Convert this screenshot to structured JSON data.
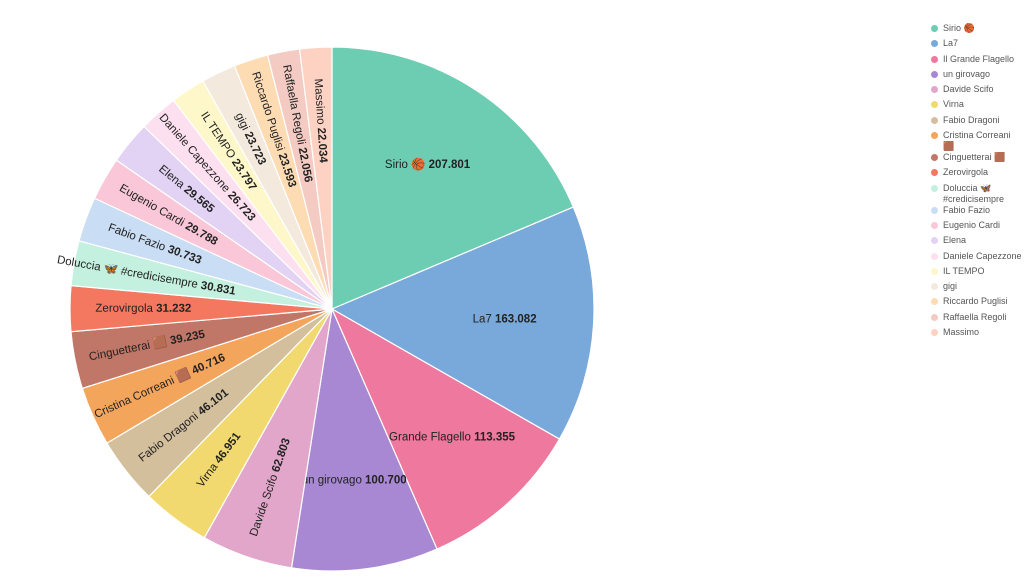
{
  "chart_data": {
    "type": "pie",
    "slices": [
      {
        "name": "Sirio 🏀",
        "value": 207.801,
        "value_label": "207.801",
        "color": "#6ccdb2"
      },
      {
        "name": "La7",
        "value": 163.082,
        "value_label": "163.082",
        "color": "#79a8da"
      },
      {
        "name": "Il Grande Flagello",
        "value": 113.355,
        "value_label": "113.355",
        "color": "#ee789e"
      },
      {
        "name": "un girovago",
        "value": 100.7,
        "value_label": "100.700",
        "color": "#a888d3"
      },
      {
        "name": "Davide Scifo",
        "value": 62.803,
        "value_label": "62.803",
        "color": "#e1a6c9"
      },
      {
        "name": "Virna",
        "value": 46.951,
        "value_label": "46.951",
        "color": "#f2d96f"
      },
      {
        "name": "Fabio Dragoni",
        "value": 46.101,
        "value_label": "46.101",
        "color": "#d3bf9c"
      },
      {
        "name": "Cristina Correani 🟫",
        "value": 40.716,
        "value_label": "40.716",
        "color": "#f4a55c"
      },
      {
        "name": "Cinguetterai 🟫",
        "value": 39.235,
        "value_label": "39.235",
        "color": "#c17767"
      },
      {
        "name": "Zerovirgola",
        "value": 31.232,
        "value_label": "31.232",
        "color": "#f47760"
      },
      {
        "name": "Doluccia 🦋 #credicisempre",
        "value": 30.831,
        "value_label": "30.831",
        "color": "#c4f0e0"
      },
      {
        "name": "Fabio Fazio",
        "value": 30.733,
        "value_label": "30.733",
        "color": "#c9ddf4"
      },
      {
        "name": "Eugenio Cardi",
        "value": 29.788,
        "value_label": "29.788",
        "color": "#fac7d8"
      },
      {
        "name": "Elena",
        "value": 29.565,
        "value_label": "29.565",
        "color": "#e2d2f3"
      },
      {
        "name": "Daniele Capezzone",
        "value": 26.723,
        "value_label": "26.723",
        "color": "#fde0ef"
      },
      {
        "name": "IL TEMPO",
        "value": 23.797,
        "value_label": "23.797",
        "color": "#fdf7c9"
      },
      {
        "name": "gigi",
        "value": 23.723,
        "value_label": "23.723",
        "color": "#f3eadd"
      },
      {
        "name": "Riccardo Puglisi",
        "value": 23.593,
        "value_label": "23.593",
        "color": "#fddcb4"
      },
      {
        "name": "Raffaella Regoli",
        "value": 22.056,
        "value_label": "22.056",
        "color": "#f4cbc3"
      },
      {
        "name": "Massimo",
        "value": 22.034,
        "value_label": "22.034",
        "color": "#fdd2c3"
      }
    ],
    "legend_position": "right"
  }
}
